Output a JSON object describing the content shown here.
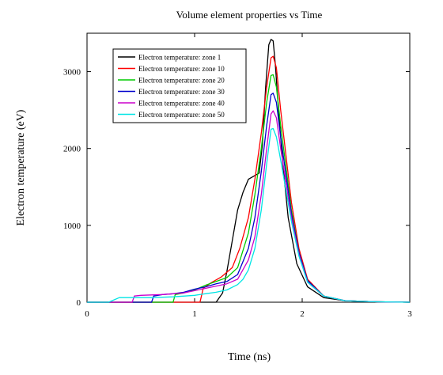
{
  "chart_data": {
    "type": "line",
    "title": "Volume element properties vs Time",
    "xlabel": "Time (ns)",
    "ylabel": "Electron temperature (eV)",
    "xlim": [
      0,
      3
    ],
    "ylim": [
      0,
      3500
    ],
    "xticks": [
      0,
      1,
      2,
      3
    ],
    "yticks": [
      0,
      1000,
      2000,
      3000
    ],
    "grid": false,
    "legend_position": "top-left",
    "series": [
      {
        "name": "Electron temperature: zone 1",
        "color": "#000000",
        "x": [
          0,
          1.2,
          1.26,
          1.3,
          1.35,
          1.4,
          1.45,
          1.5,
          1.55,
          1.6,
          1.63,
          1.66,
          1.69,
          1.71,
          1.73,
          1.75,
          1.78,
          1.82,
          1.87,
          1.95,
          2.05,
          2.2,
          2.4,
          2.7,
          3.0
        ],
        "y": [
          0,
          0,
          120,
          400,
          800,
          1200,
          1430,
          1600,
          1640,
          1680,
          2050,
          2800,
          3350,
          3420,
          3400,
          3100,
          2500,
          1800,
          1100,
          500,
          200,
          60,
          20,
          5,
          0
        ]
      },
      {
        "name": "Electron temperature: zone 10",
        "color": "#ff0000",
        "x": [
          0,
          1.05,
          1.08,
          1.15,
          1.25,
          1.35,
          1.42,
          1.5,
          1.56,
          1.62,
          1.67,
          1.71,
          1.73,
          1.76,
          1.8,
          1.85,
          1.9,
          1.97,
          2.05,
          2.2,
          2.4,
          2.7,
          3.0
        ],
        "y": [
          0,
          0,
          180,
          250,
          330,
          450,
          700,
          1100,
          1600,
          2200,
          2800,
          3180,
          3200,
          3050,
          2500,
          1900,
          1300,
          700,
          300,
          80,
          20,
          5,
          0
        ]
      },
      {
        "name": "Electron temperature: zone 20",
        "color": "#00cc00",
        "x": [
          0,
          0.8,
          0.82,
          0.9,
          1.0,
          1.1,
          1.2,
          1.3,
          1.4,
          1.5,
          1.56,
          1.62,
          1.67,
          1.71,
          1.73,
          1.76,
          1.8,
          1.85,
          1.9,
          1.97,
          2.05,
          2.2,
          2.4,
          2.7,
          3.0
        ],
        "y": [
          0,
          0,
          100,
          120,
          160,
          220,
          270,
          320,
          450,
          900,
          1400,
          2000,
          2600,
          2950,
          2960,
          2800,
          2300,
          1750,
          1200,
          650,
          280,
          80,
          20,
          5,
          0
        ]
      },
      {
        "name": "Electron temperature: zone 30",
        "color": "#0000cc",
        "x": [
          0,
          0.6,
          0.62,
          0.7,
          0.8,
          0.9,
          1.0,
          1.1,
          1.2,
          1.3,
          1.4,
          1.5,
          1.56,
          1.62,
          1.67,
          1.71,
          1.73,
          1.76,
          1.8,
          1.85,
          1.9,
          1.97,
          2.05,
          2.2,
          2.4,
          2.7,
          3.0
        ],
        "y": [
          0,
          0,
          80,
          100,
          110,
          130,
          170,
          200,
          240,
          270,
          360,
          700,
          1100,
          1700,
          2300,
          2700,
          2720,
          2600,
          2150,
          1650,
          1150,
          650,
          280,
          80,
          20,
          5,
          0
        ]
      },
      {
        "name": "Electron temperature: zone 40",
        "color": "#cc00cc",
        "x": [
          0,
          0.42,
          0.44,
          0.5,
          0.6,
          0.7,
          0.8,
          0.9,
          1.0,
          1.1,
          1.2,
          1.3,
          1.4,
          1.5,
          1.56,
          1.62,
          1.67,
          1.71,
          1.73,
          1.76,
          1.8,
          1.85,
          1.9,
          1.97,
          2.05,
          2.2,
          2.4,
          2.7,
          3.0
        ],
        "y": [
          0,
          0,
          80,
          90,
          95,
          100,
          110,
          120,
          150,
          180,
          210,
          240,
          300,
          550,
          850,
          1400,
          2000,
          2450,
          2490,
          2400,
          2000,
          1550,
          1100,
          620,
          260,
          80,
          20,
          5,
          0
        ]
      },
      {
        "name": "Electron temperature: zone 50",
        "color": "#00e5e5",
        "x": [
          0,
          0.2,
          0.25,
          0.3,
          0.4,
          0.6,
          0.8,
          1.0,
          1.1,
          1.2,
          1.3,
          1.4,
          1.45,
          1.5,
          1.56,
          1.62,
          1.67,
          1.71,
          1.73,
          1.76,
          1.8,
          1.85,
          1.9,
          1.97,
          2.05,
          2.2,
          2.4,
          2.7,
          3.0
        ],
        "y": [
          0,
          0,
          30,
          60,
          60,
          60,
          70,
          90,
          110,
          130,
          160,
          230,
          300,
          420,
          700,
          1200,
          1800,
          2250,
          2260,
          2150,
          1850,
          1450,
          1050,
          600,
          260,
          80,
          20,
          5,
          0
        ]
      }
    ]
  }
}
